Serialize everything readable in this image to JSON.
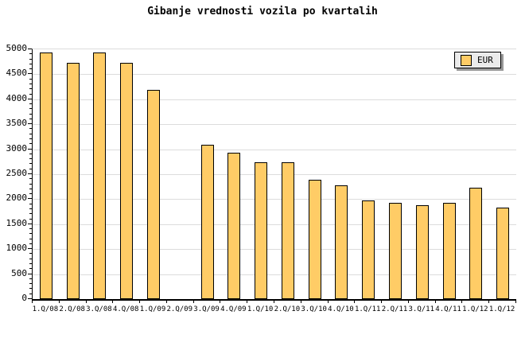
{
  "title": "Gibanje vrednosti vozila po kvartalih",
  "legend": {
    "position": "top-right",
    "items": [
      {
        "label": "EUR",
        "swatch_color": "#FFCC66"
      }
    ]
  },
  "chart_data": {
    "type": "bar",
    "title": "Gibanje vrednosti vozila po kvartalih",
    "categories": [
      "1.Q/08",
      "2.Q/08",
      "3.Q/08",
      "4.Q/08",
      "1.Q/09",
      "2.Q/09",
      "3.Q/09",
      "4.Q/09",
      "1.Q/10",
      "2.Q/10",
      "3.Q/10",
      "4.Q/10",
      "1.Q/11",
      "2.Q/11",
      "3.Q/11",
      "4.Q/11",
      "1.Q/12",
      "1.Q/12"
    ],
    "series": [
      {
        "name": "EUR",
        "values": [
          4900,
          4700,
          4900,
          4700,
          4150,
          0,
          3050,
          2900,
          2700,
          2700,
          2350,
          2250,
          1950,
          1900,
          1850,
          1900,
          2200,
          1800
        ]
      }
    ],
    "xlabel": "",
    "ylabel": "",
    "ylim": [
      0,
      5000
    ],
    "ytick_step": 500,
    "y_minor_step": 100,
    "grid": "horizontal-only",
    "legend_position": "top-right",
    "bar_color": "#FFCC66",
    "bar_border_color": "#000000",
    "grid_color": "#DCDCDC",
    "axis_color": "#000000",
    "background_color": "#FFFFFF",
    "note": "no bar rendered at 2.Q/09 (value 0)"
  }
}
